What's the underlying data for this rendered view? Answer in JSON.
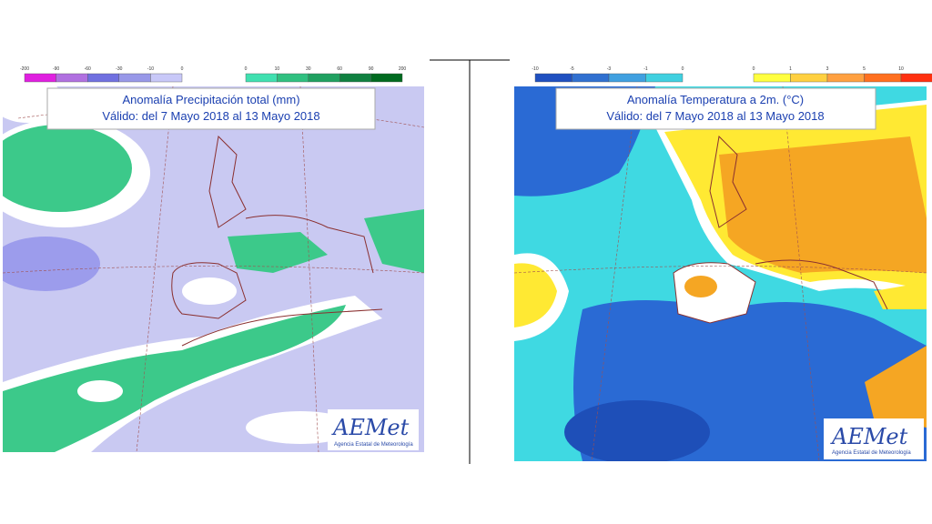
{
  "left_map": {
    "title": "Anomalía Precipitación total (mm)",
    "subtitle": "Válido: del 7 Mayo 2018 al 13 Mayo 2018",
    "legend_negative": [
      -200,
      -90,
      -60,
      -30,
      -10,
      0
    ],
    "legend_positive": [
      0,
      10,
      30,
      60,
      90,
      200
    ],
    "logo": "AEMet",
    "logo_subtitle": "Agencia Estatal de Meteorología"
  },
  "right_map": {
    "title": "Anomalía Temperatura a 2m. (°C)",
    "subtitle": "Válido: del 7 Mayo 2018 al 13 Mayo 2018",
    "legend_negative": [
      -10,
      -5,
      -3,
      -1,
      0
    ],
    "legend_positive": [
      0,
      1,
      3,
      5,
      10
    ],
    "logo": "AEMet",
    "logo_subtitle": "Agencia Estatal de Meteorología"
  }
}
